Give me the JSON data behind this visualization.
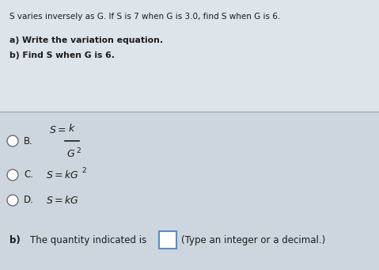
{
  "title_text": "S varies inversely as G. If S is 7 when G is 3.0, find S when G is 6.",
  "part_a_text": "a) Write the variation equation.",
  "part_b_text": "b) Find S when G is 6.",
  "option_B_label": "B.",
  "option_C_label": "C.",
  "option_D_label": "D.",
  "part_b_answer_label": "b)",
  "part_b_answer_text": "The quantity indicated is",
  "part_b_answer_hint": "(Type an integer or a decimal.)",
  "top_bg_color": "#dde4ea",
  "bot_bg_color": "#cdd6de",
  "text_color": "#1c1c1c",
  "radio_color": "#666666",
  "box_color": "#5b8ec4",
  "divider_color": "#9aabb8",
  "bold_label_color": "#1c1c1c"
}
